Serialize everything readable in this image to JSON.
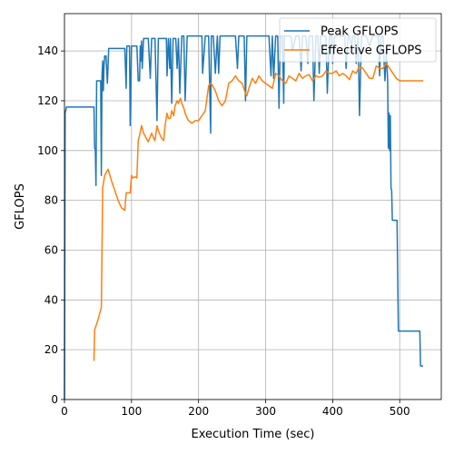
{
  "chart_data": {
    "type": "line",
    "title": "",
    "xlabel": "Execution Time (sec)",
    "ylabel": "GFLOPS",
    "xlim": [
      0,
      562
    ],
    "ylim": [
      0,
      155
    ],
    "xticks": [
      0,
      100,
      200,
      300,
      400,
      500
    ],
    "yticks": [
      0,
      20,
      40,
      60,
      80,
      100,
      120,
      140
    ],
    "grid": true,
    "legend_position": "top-right",
    "series": [
      {
        "name": "Peak GFLOPS",
        "color": "#1f77b4",
        "x": [
          0,
          1,
          3,
          10,
          20,
          30,
          40,
          44,
          45,
          46,
          47,
          48,
          50,
          52,
          54,
          55,
          56,
          57,
          58,
          59,
          60,
          62,
          64,
          66,
          68,
          70,
          75,
          80,
          85,
          90,
          92,
          93,
          95,
          97,
          98,
          100,
          102,
          105,
          108,
          110,
          112,
          113,
          114,
          115,
          116,
          118,
          120,
          125,
          128,
          130,
          132,
          135,
          138,
          140,
          142,
          145,
          150,
          152,
          153,
          155,
          157,
          158,
          160,
          162,
          165,
          166,
          168,
          170,
          172,
          175,
          178,
          180,
          183,
          185,
          188,
          190,
          195,
          200,
          205,
          206,
          210,
          214,
          215,
          218,
          219,
          220,
          222,
          225,
          228,
          230,
          232,
          235,
          238,
          240,
          242,
          245,
          250,
          255,
          258,
          260,
          265,
          268,
          270,
          272,
          275,
          280,
          285,
          290,
          295,
          300,
          305,
          308,
          310,
          312,
          315,
          318,
          320,
          322,
          325,
          327,
          328,
          330,
          333,
          335,
          338,
          340,
          345,
          350,
          353,
          355,
          358,
          360,
          363,
          365,
          368,
          370,
          372,
          375,
          378,
          380,
          382,
          385,
          388,
          390,
          392,
          395,
          398,
          400,
          403,
          405,
          408,
          410,
          413,
          415,
          418,
          420,
          423,
          425,
          428,
          430,
          433,
          435,
          438,
          440,
          443,
          445,
          448,
          450,
          455,
          460,
          465,
          468,
          470,
          472,
          475,
          478,
          480,
          482,
          483,
          484,
          485,
          486,
          487,
          488,
          489,
          490,
          492,
          495,
          496,
          498,
          500,
          510,
          520,
          530,
          531,
          532,
          535
        ],
        "values": [
          0,
          115,
          117.5,
          117.5,
          117.5,
          117.5,
          117.5,
          117.5,
          101,
          100.5,
          86,
          128,
          128,
          128,
          128,
          90,
          130,
          136,
          124,
          134,
          138,
          138,
          127,
          141,
          141,
          141,
          141,
          141,
          141,
          141,
          125,
          142,
          142,
          142,
          110,
          142,
          142,
          142,
          142,
          128,
          128,
          142,
          136,
          144,
          133,
          145,
          145,
          145,
          129,
          145,
          145,
          145,
          112,
          145,
          145,
          145,
          145,
          145,
          130,
          145,
          133,
          145,
          119,
          145,
          145,
          145,
          133,
          145,
          123,
          146,
          146,
          120,
          146,
          146,
          146,
          146,
          146,
          146,
          146,
          131,
          146,
          146,
          146,
          107,
          146,
          146,
          146,
          131,
          146,
          131,
          146,
          146,
          146,
          146,
          146,
          146,
          146,
          146,
          133,
          146,
          146,
          146,
          120,
          146,
          146,
          146,
          146,
          146,
          146,
          146,
          146,
          130,
          146,
          129,
          146,
          146,
          117,
          146,
          146,
          119,
          146,
          146,
          146,
          146,
          146,
          140,
          146,
          146,
          132,
          146,
          146,
          146,
          135,
          146,
          146,
          146,
          120,
          146,
          146,
          131,
          146,
          146,
          146,
          146,
          123,
          146,
          146,
          135,
          146,
          146,
          146,
          146,
          146,
          146,
          146,
          133,
          146,
          146,
          142,
          146,
          146,
          135,
          146,
          114,
          146,
          146,
          146,
          146,
          142,
          146,
          146,
          146,
          130,
          146,
          146,
          128,
          140,
          128,
          101,
          115,
          100,
          114,
          85,
          84,
          72,
          72,
          72,
          72,
          72,
          27.5,
          27.5,
          27.5,
          27.5,
          27.5,
          13.5,
          13.5,
          13.5
        ]
      },
      {
        "name": "Effective GFLOPS",
        "color": "#ff7f0e",
        "x": [
          44,
          45,
          50,
          55,
          57,
          60,
          65,
          70,
          75,
          80,
          85,
          90,
          92,
          95,
          98,
          100,
          102,
          105,
          108,
          110,
          112,
          115,
          118,
          120,
          125,
          130,
          133,
          135,
          138,
          140,
          143,
          145,
          148,
          150,
          153,
          155,
          158,
          160,
          163,
          165,
          168,
          170,
          173,
          175,
          178,
          180,
          183,
          185,
          190,
          195,
          200,
          205,
          210,
          215,
          218,
          220,
          225,
          230,
          235,
          240,
          245,
          250,
          255,
          260,
          265,
          270,
          272,
          275,
          280,
          285,
          290,
          295,
          300,
          305,
          310,
          315,
          320,
          325,
          330,
          335,
          340,
          345,
          350,
          355,
          360,
          365,
          370,
          375,
          380,
          385,
          390,
          395,
          400,
          405,
          410,
          415,
          420,
          425,
          430,
          435,
          440,
          445,
          450,
          455,
          460,
          465,
          470,
          475,
          480,
          485,
          490,
          495,
          500,
          505,
          510,
          515,
          520,
          525,
          530,
          535
        ],
        "values": [
          15.5,
          28,
          32,
          37,
          85,
          90,
          92.5,
          88,
          84,
          80,
          77,
          76,
          83,
          83,
          83,
          90,
          89,
          89.5,
          89,
          104,
          106,
          110,
          107,
          106,
          103.5,
          107,
          105,
          104,
          110,
          108,
          106,
          105,
          104,
          110,
          115,
          113,
          113,
          116,
          114,
          118,
          120,
          119,
          121,
          119,
          117,
          115,
          113,
          112,
          111,
          112,
          112,
          114,
          116,
          126,
          127,
          126.5,
          124,
          120,
          118,
          120,
          127,
          128,
          130,
          128,
          127,
          123,
          122,
          125,
          129,
          127,
          130,
          128,
          127,
          126,
          125,
          131,
          130,
          128,
          127,
          130,
          129,
          128,
          131,
          129,
          130,
          130.5,
          128,
          130,
          129.5,
          130,
          132,
          131,
          131,
          132,
          130,
          131,
          130,
          128.5,
          132,
          131,
          134,
          133,
          131,
          129,
          129,
          134,
          133,
          133,
          135,
          133,
          131,
          129,
          128,
          128,
          128,
          128,
          128,
          128,
          128,
          128
        ]
      }
    ]
  }
}
